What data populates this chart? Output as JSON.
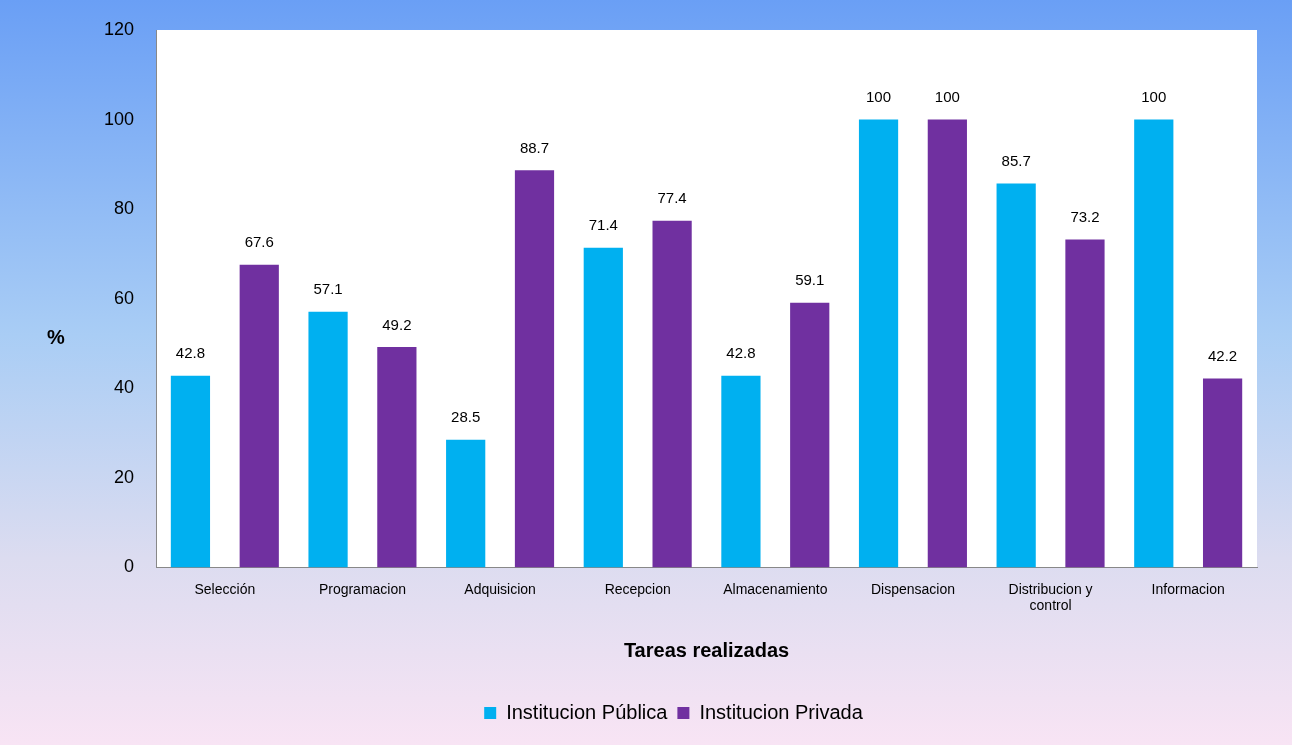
{
  "chart_data": {
    "type": "bar",
    "xlabel": "Tareas realizadas",
    "ylabel": "%",
    "categories": [
      "Selección",
      "Programacion",
      "Adquisicion",
      "Recepcion",
      "Almacenamiento",
      "Dispensacion",
      "Distribucion y control",
      "Informacion"
    ],
    "series": [
      {
        "name": "Institucion Pública",
        "color": "#00b0f0",
        "values": [
          42.8,
          57.1,
          28.5,
          71.4,
          42.8,
          100,
          85.7,
          100
        ]
      },
      {
        "name": "Institucion Privada",
        "color": "#7030a0",
        "values": [
          67.6,
          49.2,
          88.7,
          77.4,
          59.1,
          100,
          73.2,
          42.2
        ]
      }
    ],
    "ylim": [
      0,
      120
    ],
    "yticks": [
      0,
      20,
      40,
      60,
      80,
      100,
      120
    ],
    "grid": false,
    "legend": "bottom",
    "data_labels": true
  }
}
